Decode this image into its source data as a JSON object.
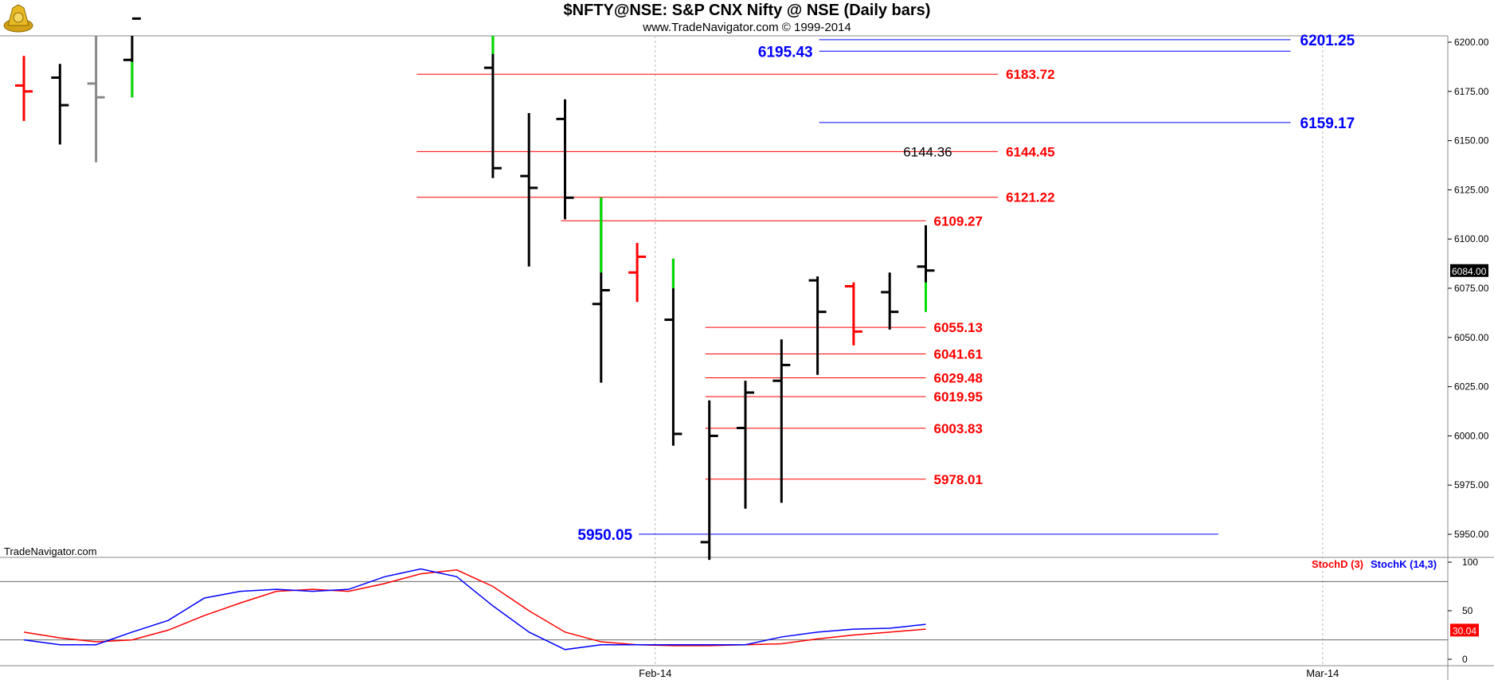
{
  "header": {
    "title": "$NFTY@NSE:  S&P CNX Nifty @ NSE  (Daily bars)",
    "subtitle": "www.TradeNavigator.com © 1999-2014",
    "watermark": "TradeNavigator.com"
  },
  "chart_data": [
    {
      "type": "ohlc",
      "ylim": [
        5935,
        6212
      ],
      "y_ticks": [
        "5950.00",
        "5975.00",
        "6000.00",
        "6025.00",
        "6050.00",
        "6075.00",
        "6100.00",
        "6125.00",
        "6150.00",
        "6175.00",
        "6200.00"
      ],
      "x_ticks": [
        {
          "label": "Feb-14",
          "index": 17.5
        },
        {
          "label": "Mar-14",
          "index": 36
        }
      ],
      "last_price": {
        "label": "6084.00",
        "value": 6084.0,
        "bg": "#000000",
        "fg": "#ffffff"
      },
      "colors": {
        "bar": "#000000",
        "up": "#00dd00",
        "down": "#ff0000",
        "gray": "#888888",
        "support_line": "#ff0000",
        "fib_line": "#0000ff"
      },
      "bars": [
        {
          "i": 0,
          "o": 6178,
          "h": 6193,
          "l": 6160,
          "c": 6175,
          "color": "red"
        },
        {
          "i": 1,
          "o": 6182,
          "h": 6189,
          "l": 6148,
          "c": 6168,
          "color": "black"
        },
        {
          "i": 2,
          "o": 6179,
          "h": 6212,
          "l": 6139,
          "c": 6172,
          "color": "gray"
        },
        {
          "i": 3,
          "o": 6191,
          "h": 6212,
          "l": 6172,
          "c": 6212,
          "color": "black",
          "green_from": 6190,
          "green_to": 6172
        },
        {
          "i": 13,
          "o": 6187,
          "h": 6212,
          "l": 6131,
          "c": 6136,
          "color": "black",
          "green_from": 6212,
          "green_to": 6194
        },
        {
          "i": 14,
          "o": 6132,
          "h": 6164,
          "l": 6086,
          "c": 6126,
          "color": "black"
        },
        {
          "i": 15,
          "o": 6161,
          "h": 6171,
          "l": 6110,
          "c": 6121,
          "color": "black"
        },
        {
          "i": 16,
          "o": 6067,
          "h": 6121,
          "l": 6027,
          "c": 6074,
          "color": "black",
          "green_from": 6121,
          "green_to": 6083
        },
        {
          "i": 17,
          "o": 6083,
          "h": 6098,
          "l": 6068,
          "c": 6091,
          "color": "red"
        },
        {
          "i": 18,
          "o": 6059,
          "h": 6090,
          "l": 5995,
          "c": 6001,
          "color": "black",
          "green_from": 6090,
          "green_to": 6075
        },
        {
          "i": 19,
          "o": 5946,
          "h": 6018,
          "l": 5937,
          "c": 6000,
          "color": "black"
        },
        {
          "i": 20,
          "o": 6004,
          "h": 6028,
          "l": 5963,
          "c": 6022,
          "color": "black"
        },
        {
          "i": 21,
          "o": 6028,
          "h": 6049,
          "l": 5966,
          "c": 6036,
          "color": "black"
        },
        {
          "i": 22,
          "o": 6079,
          "h": 6081,
          "l": 6031,
          "c": 6063,
          "color": "black"
        },
        {
          "i": 23,
          "o": 6076,
          "h": 6078,
          "l": 6046,
          "c": 6053,
          "color": "red"
        },
        {
          "i": 24,
          "o": 6073,
          "h": 6083,
          "l": 6054,
          "c": 6063,
          "color": "black"
        },
        {
          "i": 25,
          "o": 6086,
          "h": 6107,
          "l": 6063,
          "c": 6084,
          "color": "black",
          "green_from": 6078,
          "green_to": 6063
        }
      ],
      "support_resistance": [
        {
          "value": 6183.72,
          "label": "6183.72",
          "from": 11,
          "to": 27
        },
        {
          "value": 6144.45,
          "label": "6144.45",
          "from": 11,
          "to": 27
        },
        {
          "value": 6121.22,
          "label": "6121.22",
          "from": 11,
          "to": 27
        },
        {
          "value": 6109.27,
          "label": "6109.27",
          "from": 15,
          "to": 25
        },
        {
          "value": 6055.13,
          "label": "6055.13",
          "from": 19,
          "to": 25
        },
        {
          "value": 6041.61,
          "label": "6041.61",
          "from": 19,
          "to": 25
        },
        {
          "value": 6029.48,
          "label": "6029.48",
          "from": 19,
          "to": 25
        },
        {
          "value": 6019.95,
          "label": "6019.95",
          "from": 19,
          "to": 25
        },
        {
          "value": 6003.83,
          "label": "6003.83",
          "from": 19,
          "to": 25
        },
        {
          "value": 5978.01,
          "label": "5978.01",
          "from": 19,
          "to": 25
        }
      ],
      "fib_levels": [
        {
          "value": 6201.25,
          "label": "6201.25",
          "from": 22,
          "to": 35,
          "label_side": "right"
        },
        {
          "value": 6195.43,
          "label": "6195.43",
          "from": 22,
          "to": 35,
          "label_side": "left"
        },
        {
          "value": 6159.17,
          "label": "6159.17",
          "from": 22,
          "to": 35,
          "label_side": "right"
        },
        {
          "value": 5950.05,
          "label": "5950.05",
          "from": 17,
          "to": 33,
          "label_side": "left"
        }
      ],
      "note_label": {
        "value": 6144.36,
        "label": "6144.36"
      }
    },
    {
      "type": "line",
      "title": "Stochastic",
      "ylim": [
        0,
        100
      ],
      "y_ticks": [
        "0",
        "50",
        "100"
      ],
      "ref_lines": [
        80,
        20
      ],
      "last_value": {
        "label": "30.04",
        "value": 30.04,
        "bg": "#ff0000",
        "fg": "#ffffff"
      },
      "series": [
        {
          "name": "StochD (3)",
          "color": "#ff0000",
          "values": [
            28,
            22,
            18,
            20,
            30,
            45,
            58,
            70,
            72,
            70,
            78,
            88,
            92,
            75,
            50,
            28,
            18,
            15,
            14,
            14,
            15,
            16,
            21,
            25,
            28,
            31
          ]
        },
        {
          "name": "StochK (14,3)",
          "color": "#0000ff",
          "values": [
            20,
            15,
            15,
            28,
            40,
            63,
            70,
            72,
            70,
            72,
            85,
            93,
            85,
            55,
            28,
            10,
            15,
            15,
            15,
            15,
            15,
            23,
            28,
            31,
            32,
            36
          ]
        }
      ]
    }
  ]
}
